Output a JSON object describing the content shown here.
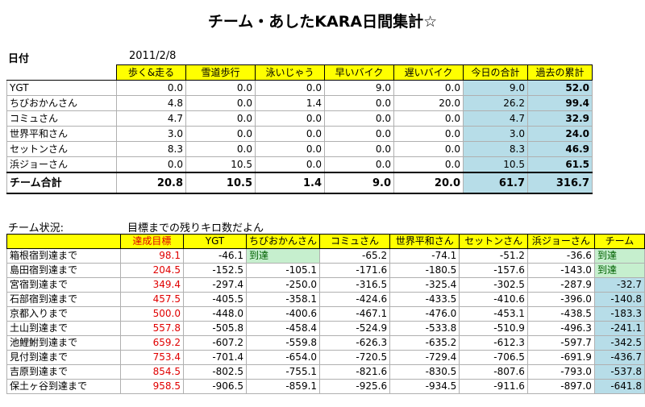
{
  "title": "チーム・あしたKARA日間集計☆",
  "date_label": "日付",
  "date_value": "2011/2/8",
  "table1": {
    "headers": [
      "歩く&走る",
      "雪道歩行",
      "泳いじゃう",
      "早いバイク",
      "遅いバイク",
      "今日の合計",
      "過去の累計"
    ],
    "rows": [
      {
        "name": "YGT",
        "values": [
          "0.0",
          "0.0",
          "0.0",
          "9.0",
          "0.0",
          "9.0",
          "52.0"
        ]
      },
      {
        "name": "ちびおかんさん",
        "values": [
          "4.8",
          "0.0",
          "1.4",
          "0.0",
          "20.0",
          "26.2",
          "99.4"
        ]
      },
      {
        "name": "コミュさん",
        "values": [
          "4.7",
          "0.0",
          "0.0",
          "0.0",
          "0.0",
          "4.7",
          "32.9"
        ]
      },
      {
        "name": "世界平和さん",
        "values": [
          "3.0",
          "0.0",
          "0.0",
          "0.0",
          "0.0",
          "3.0",
          "24.0"
        ]
      },
      {
        "name": "セットンさん",
        "values": [
          "8.3",
          "0.0",
          "0.0",
          "0.0",
          "0.0",
          "8.3",
          "46.9"
        ]
      },
      {
        "name": "浜ジョーさん",
        "values": [
          "0.0",
          "10.5",
          "0.0",
          "0.0",
          "0.0",
          "10.5",
          "61.5"
        ]
      }
    ],
    "total": {
      "name": "チーム合計",
      "values": [
        "20.8",
        "10.5",
        "1.4",
        "9.0",
        "20.0",
        "61.7",
        "316.7"
      ]
    }
  },
  "status_label": "チーム状況:",
  "status_note": "目標までの残りキロ数だよん",
  "table2": {
    "headers": [
      "達成目標",
      "YGT",
      "ちびおかんさん",
      "コミュさん",
      "世界平和さん",
      "セットンさん",
      "浜ジョーさん",
      "チーム"
    ],
    "rows": [
      {
        "name": "箱根宿到達まで",
        "goal": "98.1",
        "values": [
          "-46.1",
          "到達",
          "-65.2",
          "-74.1",
          "-51.2",
          "-36.6",
          "到達"
        ]
      },
      {
        "name": "島田宿到達まで",
        "goal": "204.5",
        "values": [
          "-152.5",
          "-105.1",
          "-171.6",
          "-180.5",
          "-157.6",
          "-143.0",
          "到達"
        ]
      },
      {
        "name": "宮宿到達まで",
        "goal": "349.4",
        "values": [
          "-297.4",
          "-250.0",
          "-316.5",
          "-325.4",
          "-302.5",
          "-287.9",
          "-32.7"
        ]
      },
      {
        "name": "石部宿到達まで",
        "goal": "457.5",
        "values": [
          "-405.5",
          "-358.1",
          "-424.6",
          "-433.5",
          "-410.6",
          "-396.0",
          "-140.8"
        ]
      },
      {
        "name": "京都入りまで",
        "goal": "500.0",
        "values": [
          "-448.0",
          "-400.6",
          "-467.1",
          "-476.0",
          "-453.1",
          "-438.5",
          "-183.3"
        ]
      },
      {
        "name": "土山到達まで",
        "goal": "557.8",
        "values": [
          "-505.8",
          "-458.4",
          "-524.9",
          "-533.8",
          "-510.9",
          "-496.3",
          "-241.1"
        ]
      },
      {
        "name": "池鯉鮒到達まで",
        "goal": "659.2",
        "values": [
          "-607.2",
          "-559.8",
          "-626.3",
          "-635.2",
          "-612.3",
          "-597.7",
          "-342.5"
        ]
      },
      {
        "name": "見付到達まで",
        "goal": "753.4",
        "values": [
          "-701.4",
          "-654.0",
          "-720.5",
          "-729.4",
          "-706.5",
          "-691.9",
          "-436.7"
        ]
      },
      {
        "name": "吉原到達まで",
        "goal": "854.5",
        "values": [
          "-802.5",
          "-755.1",
          "-821.6",
          "-830.5",
          "-807.6",
          "-793.0",
          "-537.8"
        ]
      },
      {
        "name": "保土ヶ谷到達まで",
        "goal": "958.5",
        "values": [
          "-906.5",
          "-859.1",
          "-925.6",
          "-934.5",
          "-911.6",
          "-897.0",
          "-641.8"
        ]
      }
    ]
  }
}
